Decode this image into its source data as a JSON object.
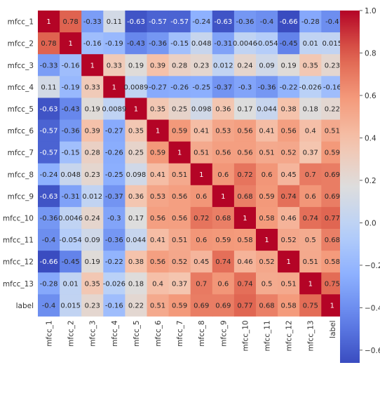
{
  "chart_data": {
    "type": "heatmap",
    "title": "",
    "xlabel": "",
    "ylabel": "",
    "categories": [
      "mfcc_1",
      "mfcc_2",
      "mfcc_3",
      "mfcc_4",
      "mfcc_5",
      "mfcc_6",
      "mfcc_7",
      "mfcc_8",
      "mfcc_9",
      "mfcc_10",
      "mfcc_11",
      "mfcc_12",
      "mfcc_13",
      "label"
    ],
    "matrix": [
      [
        1,
        0.78,
        -0.33,
        0.11,
        -0.63,
        -0.57,
        -0.57,
        -0.24,
        -0.63,
        -0.36,
        -0.4,
        -0.66,
        -0.28,
        -0.4
      ],
      [
        0.78,
        1,
        -0.16,
        -0.19,
        -0.43,
        -0.36,
        -0.15,
        0.048,
        -0.31,
        0.0046,
        -0.054,
        -0.45,
        0.01,
        0.015
      ],
      [
        -0.33,
        -0.16,
        1,
        0.33,
        0.19,
        0.39,
        0.28,
        0.23,
        0.012,
        0.24,
        0.09,
        0.19,
        0.35,
        0.23
      ],
      [
        0.11,
        -0.19,
        0.33,
        1,
        0.0089,
        -0.27,
        -0.26,
        -0.25,
        -0.37,
        -0.3,
        -0.36,
        -0.22,
        -0.026,
        -0.16
      ],
      [
        -0.63,
        -0.43,
        0.19,
        0.0089,
        1,
        0.35,
        0.25,
        0.098,
        0.36,
        0.17,
        0.044,
        0.38,
        0.18,
        0.22
      ],
      [
        -0.57,
        -0.36,
        0.39,
        -0.27,
        0.35,
        1,
        0.59,
        0.41,
        0.53,
        0.56,
        0.41,
        0.56,
        0.4,
        0.51
      ],
      [
        -0.57,
        -0.15,
        0.28,
        -0.26,
        0.25,
        0.59,
        1,
        0.51,
        0.56,
        0.56,
        0.51,
        0.52,
        0.37,
        0.59
      ],
      [
        -0.24,
        0.048,
        0.23,
        -0.25,
        0.098,
        0.41,
        0.51,
        1,
        0.6,
        0.72,
        0.6,
        0.45,
        0.7,
        0.69
      ],
      [
        -0.63,
        -0.31,
        0.012,
        -0.37,
        0.36,
        0.53,
        0.56,
        0.6,
        1,
        0.68,
        0.59,
        0.74,
        0.6,
        0.69
      ],
      [
        -0.36,
        0.0046,
        0.24,
        -0.3,
        0.17,
        0.56,
        0.56,
        0.72,
        0.68,
        1,
        0.58,
        0.46,
        0.74,
        0.77
      ],
      [
        -0.4,
        -0.054,
        0.09,
        -0.36,
        0.044,
        0.41,
        0.51,
        0.6,
        0.59,
        0.58,
        1,
        0.52,
        0.5,
        0.68
      ],
      [
        -0.66,
        -0.45,
        0.19,
        -0.22,
        0.38,
        0.56,
        0.52,
        0.45,
        0.74,
        0.46,
        0.52,
        1,
        0.51,
        0.58
      ],
      [
        -0.28,
        0.01,
        0.35,
        -0.026,
        0.18,
        0.4,
        0.37,
        0.7,
        0.6,
        0.74,
        0.5,
        0.51,
        1,
        0.75
      ],
      [
        -0.4,
        0.015,
        0.23,
        -0.16,
        0.22,
        0.51,
        0.59,
        0.69,
        0.69,
        0.77,
        0.68,
        0.58,
        0.75,
        1
      ]
    ],
    "colorbar": {
      "colormap": "coolwarm",
      "vmin": -0.66,
      "vmax": 1.0,
      "ticks": [
        1.0,
        0.8,
        0.6,
        0.4,
        0.2,
        0.0,
        -0.2,
        -0.4,
        -0.6
      ],
      "tick_labels": [
        "1.0",
        "0.8",
        "0.6",
        "0.4",
        "0.2",
        "0.0",
        "−0.2",
        "−0.4",
        "−0.6"
      ]
    },
    "annotations": true,
    "grid": false,
    "legend": "colorbar-right"
  }
}
